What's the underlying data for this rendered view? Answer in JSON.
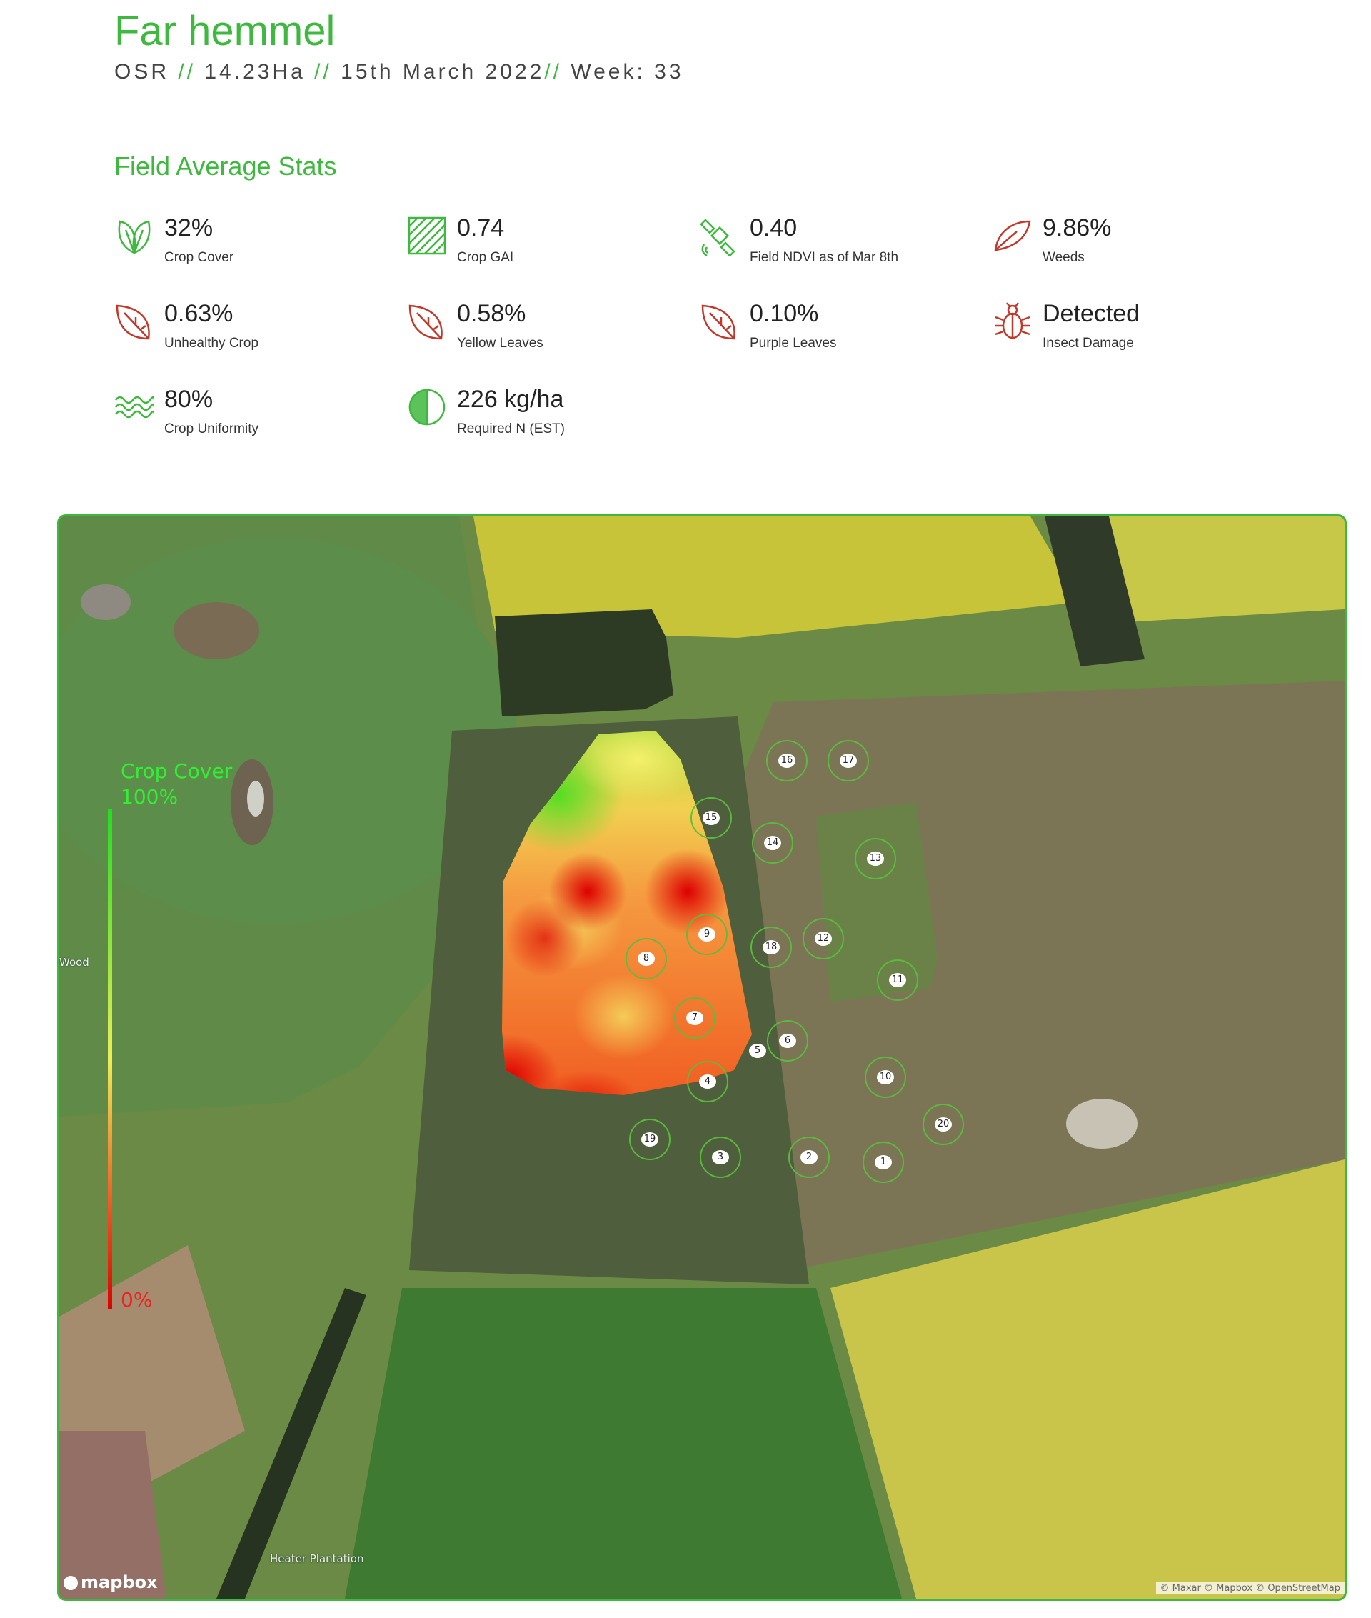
{
  "header": {
    "title": "Far hemmel",
    "crop": "OSR",
    "area": "14.23Ha",
    "date": "15th March 2022",
    "week": "Week: 33",
    "separator": "//"
  },
  "section_title": "Field Average Stats",
  "stats": [
    {
      "value": "32%",
      "label": "Crop Cover",
      "icon": "leaf-sprout-icon"
    },
    {
      "value": "0.74",
      "label": "Crop GAI",
      "icon": "hatched-square-icon"
    },
    {
      "value": "0.40",
      "label": "Field NDVI as of Mar 8th",
      "icon": "satellite-icon"
    },
    {
      "value": "9.86%",
      "label": "Weeds",
      "icon": "weed-leaf-icon"
    },
    {
      "value": "0.63%",
      "label": "Unhealthy Crop",
      "icon": "leaf-icon"
    },
    {
      "value": "0.58%",
      "label": "Yellow Leaves",
      "icon": "leaf-icon"
    },
    {
      "value": "0.10%",
      "label": "Purple Leaves",
      "icon": "leaf-icon"
    },
    {
      "value": "Detected",
      "label": "Insect Damage",
      "icon": "bug-icon"
    },
    {
      "value": "80%",
      "label": "Crop Uniformity",
      "icon": "waves-icon"
    },
    {
      "value": "226 kg/ha",
      "label": "Required N (EST)",
      "icon": "half-circle-icon"
    }
  ],
  "colors": {
    "accent": "#3fb83f",
    "alert": "#c0392b"
  },
  "map": {
    "legend": {
      "title": "Crop Cover",
      "max": "100%",
      "min": "0%"
    },
    "sample_points": [
      "16",
      "17",
      "15",
      "14",
      "13",
      "9",
      "18",
      "12",
      "8",
      "11",
      "7",
      "6",
      "5",
      "4",
      "10",
      "20",
      "19",
      "3",
      "2",
      "1"
    ],
    "places": [
      "Wood",
      "Heater Plantation"
    ],
    "logo": "mapbox",
    "attribution": "© Maxar © Mapbox © OpenStreetMap"
  }
}
